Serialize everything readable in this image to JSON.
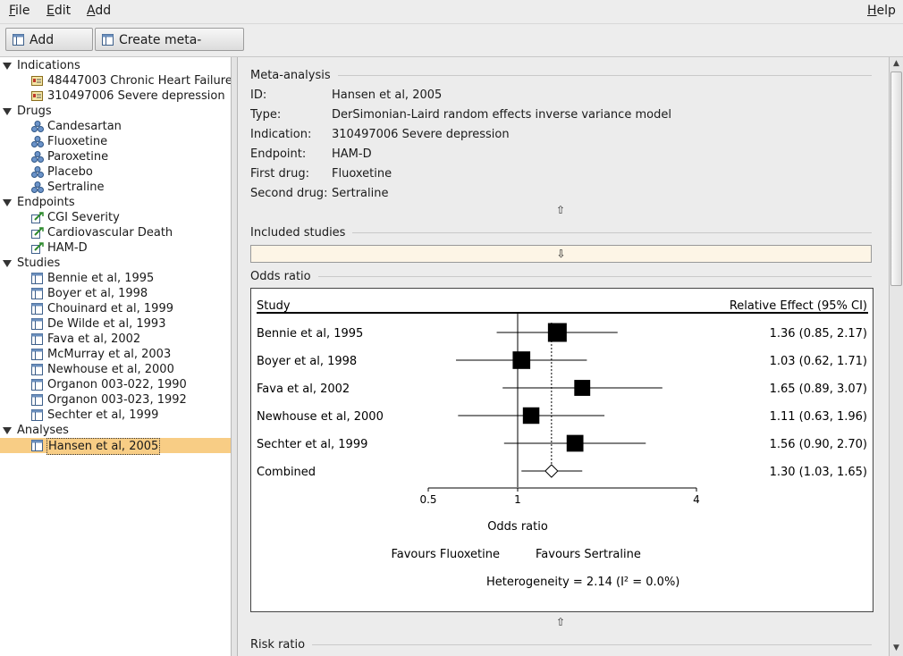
{
  "menubar": {
    "file": "File",
    "edit": "Edit",
    "add": "Add",
    "help": "Help"
  },
  "toolbar": {
    "add_study": "Add study",
    "create_meta": "Create meta-analysis"
  },
  "tree": {
    "indications": {
      "label": "Indications",
      "items": [
        "48447003 Chronic Heart Failure",
        "310497006 Severe depression"
      ]
    },
    "drugs": {
      "label": "Drugs",
      "items": [
        "Candesartan",
        "Fluoxetine",
        "Paroxetine",
        "Placebo",
        "Sertraline"
      ]
    },
    "endpoints": {
      "label": "Endpoints",
      "items": [
        "CGI Severity",
        "Cardiovascular Death",
        "HAM-D"
      ]
    },
    "studies": {
      "label": "Studies",
      "items": [
        "Bennie et al, 1995",
        "Boyer et al, 1998",
        "Chouinard et al, 1999",
        "De Wilde et al, 1993",
        "Fava et al, 2002",
        "McMurray et al, 2003",
        "Newhouse et al, 2000",
        "Organon 003-022, 1990",
        "Organon 003-023, 1992",
        "Sechter et al, 1999"
      ]
    },
    "analyses": {
      "label": "Analyses",
      "items": [
        "Hansen et al, 2005"
      ]
    }
  },
  "meta": {
    "section": "Meta-analysis",
    "id_label": "ID:",
    "id_value": "Hansen et al, 2005",
    "type_label": "Type:",
    "type_value": "DerSimonian-Laird random effects inverse variance model",
    "indication_label": "Indication:",
    "indication_value": "310497006 Severe depression",
    "endpoint_label": "Endpoint:",
    "endpoint_value": "HAM-D",
    "first_label": "First drug:",
    "first_value": "Fluoxetine",
    "second_label": "Second drug:",
    "second_value": "Sertraline"
  },
  "included_studies": "Included studies",
  "odds_ratio_section": "Odds ratio",
  "risk_ratio_section": "Risk ratio",
  "chart_data": {
    "type": "forest",
    "col_study": "Study",
    "col_effect": "Relative Effect (95% CI)",
    "rows": [
      {
        "study": "Bennie et al, 1995",
        "or": 1.36,
        "lo": 0.85,
        "hi": 2.17,
        "label": "1.36 (0.85, 2.17)",
        "weight": 1.0
      },
      {
        "study": "Boyer et al, 1998",
        "or": 1.03,
        "lo": 0.62,
        "hi": 1.71,
        "label": "1.03 (0.62, 1.71)",
        "weight": 0.85
      },
      {
        "study": "Fava et al, 2002",
        "or": 1.65,
        "lo": 0.89,
        "hi": 3.07,
        "label": "1.65 (0.89, 3.07)",
        "weight": 0.65
      },
      {
        "study": "Newhouse et al, 2000",
        "or": 1.11,
        "lo": 0.63,
        "hi": 1.96,
        "label": "1.11 (0.63, 1.96)",
        "weight": 0.72
      },
      {
        "study": "Sechter et al, 1999",
        "or": 1.56,
        "lo": 0.9,
        "hi": 2.7,
        "label": "1.56 (0.90, 2.70)",
        "weight": 0.75
      }
    ],
    "combined": {
      "study": "Combined",
      "or": 1.3,
      "lo": 1.03,
      "hi": 1.65,
      "label": "1.30 (1.03, 1.65)"
    },
    "x_scale": "log",
    "xlim": [
      0.5,
      4
    ],
    "xticks": [
      "0.5",
      "1",
      "4"
    ],
    "xlabel": "Odds ratio",
    "favours_left": "Favours Fluoxetine",
    "favours_right": "Favours Sertraline",
    "heterogeneity": "Heterogeneity = 2.14 (I² = 0.0%)"
  }
}
